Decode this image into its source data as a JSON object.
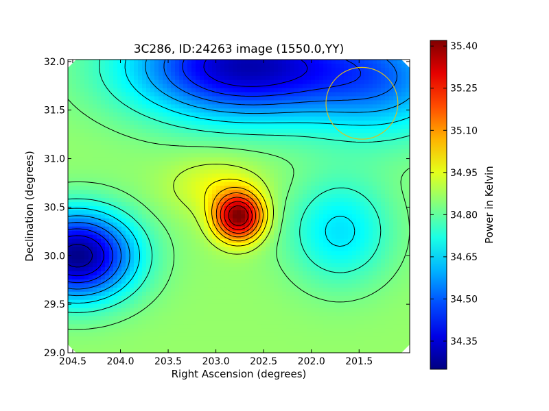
{
  "chart_data": {
    "type": "heatmap",
    "title": "3C286, ID:24263 image (1550.0,YY)",
    "xlabel": "Right Ascension (degrees)",
    "ylabel": "Declination (degrees)",
    "colorbar_label": "Power in Kelvin",
    "xlim": [
      204.55,
      200.97
    ],
    "ylim": [
      29.0,
      32.02
    ],
    "x_ticks": [
      204.5,
      204.0,
      203.5,
      203.0,
      202.5,
      202.0,
      201.5
    ],
    "x_tick_labels": [
      "204.5",
      "204.0",
      "203.5",
      "203.0",
      "202.5",
      "202.0",
      "201.5"
    ],
    "y_ticks": [
      29.0,
      29.5,
      30.0,
      30.5,
      31.0,
      31.5,
      32.0
    ],
    "y_tick_labels": [
      "29.0",
      "29.5",
      "30.0",
      "30.5",
      "31.0",
      "31.5",
      "32.0"
    ],
    "colorbar_range": [
      34.25,
      35.42
    ],
    "colorbar_ticks": [
      34.35,
      34.5,
      34.65,
      34.8,
      34.95,
      35.1,
      35.25,
      35.4
    ],
    "colorbar_tick_labels": [
      "34.35",
      "34.50",
      "34.65",
      "34.80",
      "34.95",
      "35.10",
      "35.25",
      "35.40"
    ],
    "colormap": "jet",
    "contours": "black",
    "background_level": 34.86,
    "features": [
      {
        "kind": "peak",
        "ra": 202.76,
        "dec": 30.4,
        "amplitude": 0.56,
        "width_ra": 0.25,
        "width_dec": 0.24
      },
      {
        "kind": "peak",
        "ra": 203.0,
        "dec": 30.72,
        "amplitude": 0.1,
        "width_ra": 0.5,
        "width_dec": 0.3
      },
      {
        "kind": "trough",
        "ra": 204.45,
        "dec": 30.0,
        "amplitude": -0.6,
        "width_ra": 0.6,
        "width_dec": 0.45
      },
      {
        "kind": "trough",
        "ra": 202.7,
        "dec": 31.95,
        "amplitude": -0.55,
        "width_ra": 1.2,
        "width_dec": 0.55
      },
      {
        "kind": "trough",
        "ra": 201.7,
        "dec": 30.25,
        "amplitude": -0.2,
        "width_ra": 0.55,
        "width_dec": 0.55
      },
      {
        "kind": "trough",
        "ra": 201.2,
        "dec": 31.8,
        "amplitude": -0.25,
        "width_ra": 0.8,
        "width_dec": 0.6
      }
    ],
    "beam_circle": {
      "ra": 201.47,
      "dec": 31.57,
      "radius_deg": 0.37,
      "color": "#dcc020"
    }
  }
}
